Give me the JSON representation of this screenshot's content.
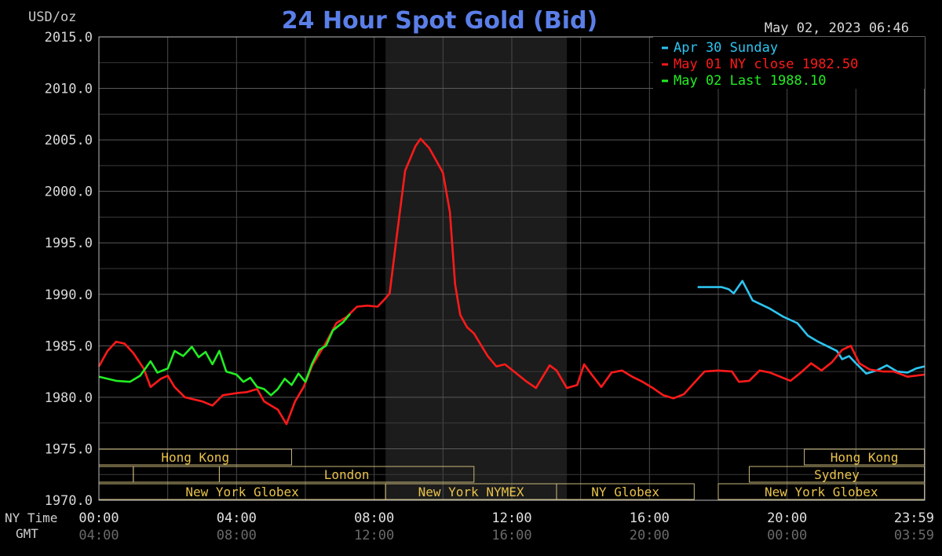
{
  "chart_data": {
    "type": "line",
    "title": "24 Hour Spot Gold (Bid)",
    "ylabel": "USD/oz",
    "timestamp": "May 02, 2023 06:46",
    "ylim": [
      1970,
      2015
    ],
    "xlim_hours": [
      0,
      24
    ],
    "y_ticks": [
      "2015.0",
      "2010.0",
      "2005.0",
      "2000.0",
      "1995.0",
      "1990.0",
      "1985.0",
      "1980.0",
      "1975.0",
      "1970.0"
    ],
    "x_row_labels": {
      "ny": "NY Time",
      "gmt": "GMT"
    },
    "x_ticks_ny": [
      "00:00",
      "04:00",
      "08:00",
      "12:00",
      "16:00",
      "20:00",
      "23:59"
    ],
    "x_ticks_gmt": [
      "04:00",
      "08:00",
      "12:00",
      "16:00",
      "20:00",
      "00:00",
      "03:59"
    ],
    "legend": [
      {
        "label": "Apr 30 Sunday",
        "color": "#2ec4f0"
      },
      {
        "label": "May 01 NY close 1982.50",
        "color": "#ff1a1a"
      },
      {
        "label": "May 02 Last 1988.10",
        "color": "#22ee22"
      }
    ],
    "shaded_region_hours": [
      8.33,
      13.6
    ],
    "series": [
      {
        "name": "Apr 30 Sunday",
        "color": "#2ec4f0",
        "points": [
          [
            17.4,
            1990.7
          ],
          [
            18.1,
            1990.7
          ],
          [
            18.3,
            1990.5
          ],
          [
            18.45,
            1990.1
          ],
          [
            18.7,
            1991.3
          ],
          [
            19.0,
            1989.4
          ],
          [
            19.5,
            1988.6
          ],
          [
            19.9,
            1987.8
          ],
          [
            20.3,
            1987.2
          ],
          [
            20.6,
            1986.0
          ],
          [
            20.9,
            1985.4
          ],
          [
            21.2,
            1984.9
          ],
          [
            21.45,
            1984.5
          ],
          [
            21.6,
            1983.7
          ],
          [
            21.8,
            1984.0
          ],
          [
            22.0,
            1983.3
          ],
          [
            22.3,
            1982.3
          ],
          [
            22.6,
            1982.6
          ],
          [
            22.9,
            1983.1
          ],
          [
            23.2,
            1982.5
          ],
          [
            23.5,
            1982.4
          ],
          [
            23.75,
            1982.8
          ],
          [
            23.99,
            1983.0
          ]
        ]
      },
      {
        "name": "May 01 NY close 1982.50",
        "color": "#ff1a1a",
        "points": [
          [
            0.0,
            1983.0
          ],
          [
            0.25,
            1984.5
          ],
          [
            0.5,
            1985.4
          ],
          [
            0.75,
            1985.2
          ],
          [
            1.0,
            1984.3
          ],
          [
            1.3,
            1982.8
          ],
          [
            1.5,
            1981.0
          ],
          [
            1.8,
            1981.8
          ],
          [
            2.0,
            1982.1
          ],
          [
            2.2,
            1981.0
          ],
          [
            2.5,
            1980.0
          ],
          [
            3.0,
            1979.6
          ],
          [
            3.3,
            1979.2
          ],
          [
            3.6,
            1980.2
          ],
          [
            4.0,
            1980.4
          ],
          [
            4.3,
            1980.5
          ],
          [
            4.6,
            1980.8
          ],
          [
            4.8,
            1979.6
          ],
          [
            5.2,
            1978.8
          ],
          [
            5.45,
            1977.4
          ],
          [
            5.7,
            1979.6
          ],
          [
            5.95,
            1981.0
          ],
          [
            6.2,
            1983.1
          ],
          [
            6.6,
            1985.3
          ],
          [
            6.9,
            1987.2
          ],
          [
            7.2,
            1987.8
          ],
          [
            7.5,
            1988.8
          ],
          [
            7.8,
            1988.9
          ],
          [
            8.1,
            1988.8
          ],
          [
            8.3,
            1989.5
          ],
          [
            8.45,
            1990.1
          ],
          [
            8.65,
            1995.5
          ],
          [
            8.9,
            2002.0
          ],
          [
            9.2,
            2004.4
          ],
          [
            9.35,
            2005.1
          ],
          [
            9.6,
            2004.2
          ],
          [
            9.8,
            2003.0
          ],
          [
            10.0,
            2001.8
          ],
          [
            10.2,
            1998.0
          ],
          [
            10.35,
            1991.0
          ],
          [
            10.5,
            1988.0
          ],
          [
            10.7,
            1986.8
          ],
          [
            10.9,
            1986.2
          ],
          [
            11.1,
            1985.1
          ],
          [
            11.3,
            1984.0
          ],
          [
            11.55,
            1983.0
          ],
          [
            11.8,
            1983.2
          ],
          [
            12.1,
            1982.4
          ],
          [
            12.4,
            1981.6
          ],
          [
            12.7,
            1980.9
          ],
          [
            12.9,
            1982.0
          ],
          [
            13.1,
            1983.1
          ],
          [
            13.3,
            1982.6
          ],
          [
            13.6,
            1980.9
          ],
          [
            13.9,
            1981.2
          ],
          [
            14.1,
            1983.2
          ],
          [
            14.3,
            1982.3
          ],
          [
            14.6,
            1981.0
          ],
          [
            14.9,
            1982.4
          ],
          [
            15.2,
            1982.6
          ],
          [
            15.5,
            1982.0
          ],
          [
            15.8,
            1981.5
          ],
          [
            16.1,
            1980.9
          ],
          [
            16.4,
            1980.2
          ],
          [
            16.7,
            1979.9
          ],
          [
            17.0,
            1980.3
          ],
          [
            17.3,
            1981.4
          ],
          [
            17.6,
            1982.5
          ],
          [
            18.0,
            1982.6
          ],
          [
            18.4,
            1982.5
          ],
          [
            18.6,
            1981.5
          ],
          [
            18.9,
            1981.6
          ],
          [
            19.2,
            1982.6
          ],
          [
            19.5,
            1982.4
          ],
          [
            19.8,
            1982.0
          ],
          [
            20.1,
            1981.6
          ],
          [
            20.4,
            1982.4
          ],
          [
            20.7,
            1983.3
          ],
          [
            21.0,
            1982.6
          ],
          [
            21.3,
            1983.4
          ],
          [
            21.6,
            1984.6
          ],
          [
            21.85,
            1985.0
          ],
          [
            22.1,
            1983.3
          ],
          [
            22.4,
            1982.7
          ],
          [
            22.8,
            1982.5
          ],
          [
            23.1,
            1982.5
          ],
          [
            23.5,
            1982.0
          ],
          [
            23.99,
            1982.2
          ]
        ]
      },
      {
        "name": "May 02 Last 1988.10",
        "color": "#22ee22",
        "points": [
          [
            0.0,
            1982.0
          ],
          [
            0.5,
            1981.6
          ],
          [
            0.9,
            1981.5
          ],
          [
            1.2,
            1982.1
          ],
          [
            1.5,
            1983.5
          ],
          [
            1.7,
            1982.4
          ],
          [
            2.0,
            1982.8
          ],
          [
            2.2,
            1984.5
          ],
          [
            2.45,
            1984.0
          ],
          [
            2.7,
            1984.9
          ],
          [
            2.9,
            1983.9
          ],
          [
            3.1,
            1984.4
          ],
          [
            3.3,
            1983.2
          ],
          [
            3.5,
            1984.5
          ],
          [
            3.7,
            1982.5
          ],
          [
            4.0,
            1982.2
          ],
          [
            4.2,
            1981.5
          ],
          [
            4.4,
            1981.9
          ],
          [
            4.6,
            1981.0
          ],
          [
            4.8,
            1980.8
          ],
          [
            5.0,
            1980.2
          ],
          [
            5.2,
            1980.8
          ],
          [
            5.4,
            1981.8
          ],
          [
            5.6,
            1981.2
          ],
          [
            5.8,
            1982.3
          ],
          [
            6.0,
            1981.5
          ],
          [
            6.2,
            1983.3
          ],
          [
            6.4,
            1984.6
          ],
          [
            6.6,
            1985.0
          ],
          [
            6.8,
            1986.5
          ],
          [
            7.1,
            1987.3
          ],
          [
            7.3,
            1988.1
          ]
        ]
      }
    ],
    "sessions": [
      {
        "label": "Hong Kong",
        "start": 0.0,
        "end": 5.6,
        "row": 0
      },
      {
        "label": "",
        "start": 0.0,
        "end": 1.0,
        "row": 1
      },
      {
        "label": "",
        "start": 1.0,
        "end": 3.5,
        "row": 1
      },
      {
        "label": "London",
        "start": 3.5,
        "end": 10.9,
        "row": 1
      },
      {
        "label": "New York Globex",
        "start": 0.0,
        "end": 8.33,
        "row": 2
      },
      {
        "label": "New York NYMEX",
        "start": 8.33,
        "end": 13.3,
        "row": 2
      },
      {
        "label": "NY Globex",
        "start": 13.3,
        "end": 17.3,
        "row": 2
      },
      {
        "label": "Hong Kong",
        "start": 20.5,
        "end": 23.99,
        "row": 0
      },
      {
        "label": "Sydney",
        "start": 18.9,
        "end": 23.99,
        "row": 1
      },
      {
        "label": "New York Globex",
        "start": 18.0,
        "end": 23.99,
        "row": 2
      }
    ]
  }
}
